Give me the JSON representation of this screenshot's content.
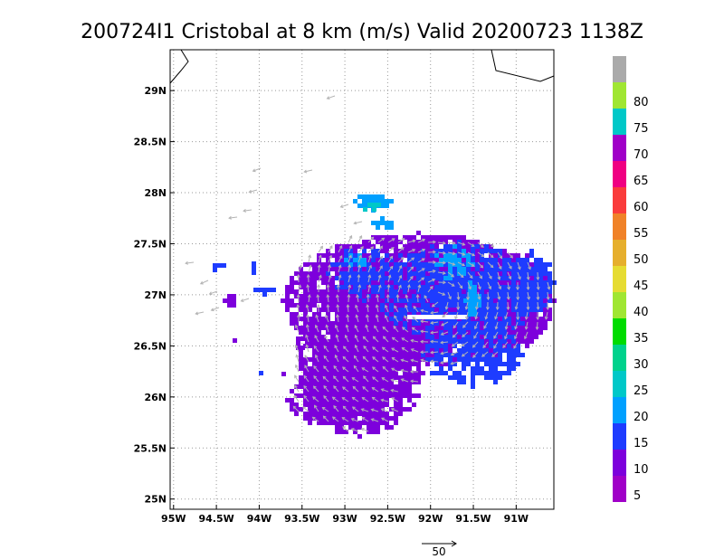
{
  "chart_data": {
    "type": "heatmap",
    "title": "200724I1 Cristobal at 8 km (m/s) Valid 20200723 1138Z",
    "x_ticks": [
      {
        "value": -95.0,
        "label": "95W"
      },
      {
        "value": -94.5,
        "label": "94.5W"
      },
      {
        "value": -94.0,
        "label": "94W"
      },
      {
        "value": -93.5,
        "label": "93.5W"
      },
      {
        "value": -93.0,
        "label": "93W"
      },
      {
        "value": -92.5,
        "label": "92.5W"
      },
      {
        "value": -92.0,
        "label": "92W"
      },
      {
        "value": -91.5,
        "label": "91.5W"
      },
      {
        "value": -91.0,
        "label": "91W"
      }
    ],
    "y_ticks": [
      {
        "value": 25.0,
        "label": "25N"
      },
      {
        "value": 25.5,
        "label": "25.5N"
      },
      {
        "value": 26.0,
        "label": "26N"
      },
      {
        "value": 26.5,
        "label": "26.5N"
      },
      {
        "value": 27.0,
        "label": "27N"
      },
      {
        "value": 27.5,
        "label": "27.5N"
      },
      {
        "value": 28.0,
        "label": "28N"
      },
      {
        "value": 28.5,
        "label": "28.5N"
      },
      {
        "value": 29.0,
        "label": "29N"
      }
    ],
    "xlim": [
      -95.04,
      -90.56
    ],
    "ylim": [
      24.9,
      29.4
    ],
    "grid": true,
    "colorbar": {
      "levels": [
        0,
        5,
        10,
        15,
        20,
        25,
        30,
        35,
        40,
        45,
        50,
        55,
        60,
        65,
        70,
        75,
        80,
        85
      ],
      "labels": [
        "5",
        "10",
        "15",
        "20",
        "25",
        "30",
        "35",
        "40",
        "45",
        "50",
        "55",
        "60",
        "65",
        "70",
        "75",
        "80"
      ],
      "colors": [
        "#a000c8",
        "#7d00dc",
        "#1e3cff",
        "#00a0ff",
        "#00c8c8",
        "#00d28c",
        "#00dc00",
        "#a0e632",
        "#e6dc32",
        "#e6af2d",
        "#f08228",
        "#fa3c3c",
        "#f00082",
        "#a000c8",
        "#00c8c8",
        "#a0e632",
        "#aaaaaa"
      ]
    },
    "reference_vector": {
      "label": "50",
      "value": 50
    },
    "wind_field": {
      "colors": {
        "background": "#7d00dc",
        "core": "#1e3cff",
        "patch": "#00a0ff",
        "patch_light": "#00c8c8",
        "arrow": "#b4b4b4"
      },
      "note_values": {
        "dominant_speed_range": "5-10",
        "max_speed_range": "15-25"
      }
    }
  }
}
